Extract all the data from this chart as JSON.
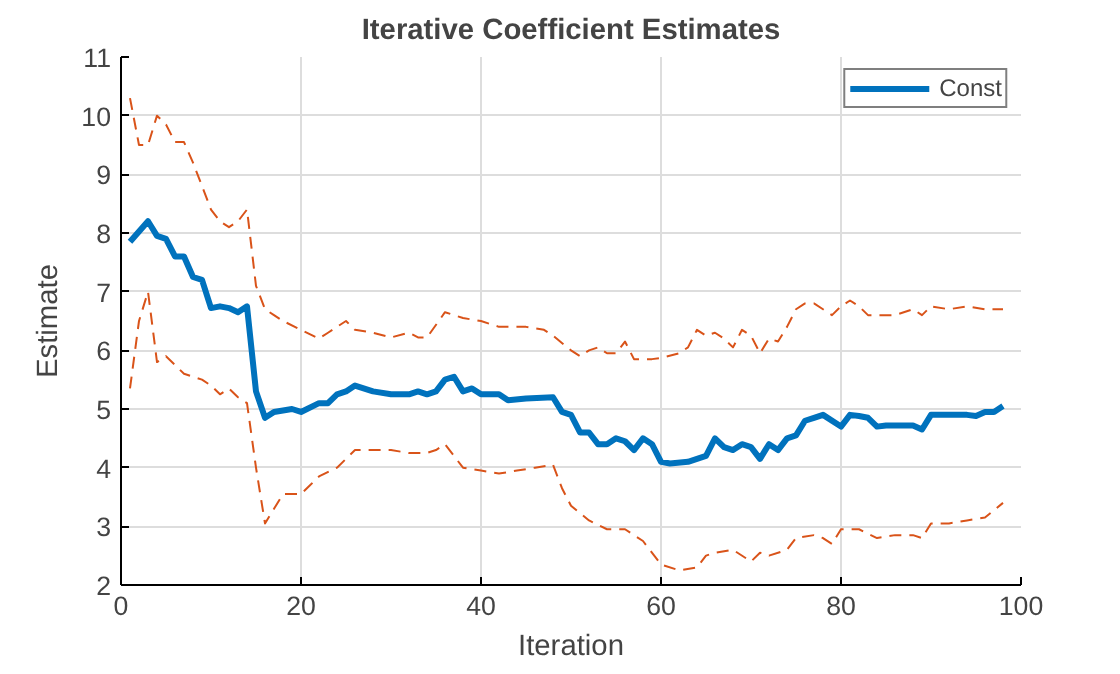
{
  "chart_data": {
    "type": "line",
    "title": "Iterative Coefficient Estimates",
    "xlabel": "Iteration",
    "ylabel": "Estimate",
    "xlim": [
      0,
      100
    ],
    "xticks": [
      0,
      20,
      40,
      60,
      80,
      100
    ],
    "ylim": [
      2,
      11
    ],
    "yticks": [
      2,
      3,
      4,
      5,
      6,
      7,
      8,
      9,
      10,
      11
    ],
    "grid": true,
    "legend": "top right",
    "series": [
      {
        "name": "Const",
        "color": "#0072bd",
        "line_style": "solid",
        "x": [
          1,
          3,
          4,
          5,
          6,
          7,
          8,
          9,
          10,
          11,
          12,
          13,
          14,
          15,
          16,
          17,
          19,
          20,
          22,
          23,
          24,
          25,
          26,
          28,
          30,
          32,
          33,
          34,
          35,
          36,
          37,
          38,
          39,
          40,
          42,
          43,
          45,
          48,
          49,
          50,
          51,
          52,
          53,
          54,
          55,
          56,
          57,
          58,
          59,
          60,
          61,
          63,
          64,
          65,
          66,
          67,
          68,
          69,
          70,
          71,
          72,
          73,
          74,
          75,
          76,
          77,
          78,
          80,
          81,
          82,
          83,
          84,
          85,
          88,
          89,
          90,
          94,
          95,
          96,
          97,
          98
        ],
        "values": [
          7.85,
          8.2,
          7.95,
          7.9,
          7.6,
          7.6,
          7.25,
          7.2,
          6.72,
          6.75,
          6.72,
          6.65,
          6.75,
          5.3,
          4.85,
          4.95,
          5.0,
          4.95,
          5.1,
          5.1,
          5.25,
          5.3,
          5.4,
          5.3,
          5.25,
          5.25,
          5.3,
          5.25,
          5.3,
          5.5,
          5.55,
          5.3,
          5.35,
          5.25,
          5.25,
          5.15,
          5.18,
          5.2,
          4.95,
          4.9,
          4.6,
          4.6,
          4.4,
          4.4,
          4.5,
          4.45,
          4.3,
          4.5,
          4.4,
          4.1,
          4.07,
          4.1,
          4.15,
          4.2,
          4.5,
          4.35,
          4.3,
          4.4,
          4.35,
          4.15,
          4.4,
          4.3,
          4.5,
          4.55,
          4.8,
          4.85,
          4.9,
          4.7,
          4.9,
          4.88,
          4.85,
          4.7,
          4.72,
          4.72,
          4.65,
          4.9,
          4.9,
          4.88,
          4.95,
          4.95,
          5.05
        ]
      },
      {
        "color": "#d95319",
        "line_style": "dashed",
        "x": [
          1,
          2,
          3,
          4,
          5,
          6,
          7,
          8,
          9,
          10,
          11,
          12,
          13,
          14,
          15,
          16,
          17,
          18,
          20,
          22,
          23,
          24,
          25,
          26,
          28,
          30,
          32,
          33,
          34,
          36,
          37,
          38,
          40,
          42,
          45,
          47,
          48,
          50,
          51,
          52,
          53,
          54,
          55,
          56,
          57,
          58,
          59,
          60,
          62,
          63,
          64,
          65,
          66,
          67,
          68,
          69,
          70,
          71,
          72,
          73,
          74,
          75,
          76,
          77,
          78,
          79,
          80,
          81,
          82,
          83,
          85,
          86,
          88,
          89,
          90,
          92,
          94,
          96,
          98
        ],
        "values": [
          10.3,
          9.5,
          9.5,
          10.0,
          9.85,
          9.55,
          9.55,
          9.2,
          8.8,
          8.4,
          8.2,
          8.1,
          8.2,
          8.4,
          7.1,
          6.7,
          6.6,
          6.5,
          6.35,
          6.2,
          6.3,
          6.4,
          6.5,
          6.35,
          6.3,
          6.22,
          6.3,
          6.22,
          6.22,
          6.65,
          6.6,
          6.55,
          6.5,
          6.4,
          6.4,
          6.35,
          6.25,
          6.0,
          5.9,
          6.0,
          6.05,
          5.95,
          5.95,
          6.15,
          5.85,
          5.85,
          5.85,
          5.87,
          5.95,
          6.05,
          6.35,
          6.25,
          6.3,
          6.2,
          6.05,
          6.35,
          6.25,
          5.95,
          6.2,
          6.15,
          6.4,
          6.7,
          6.8,
          6.8,
          6.7,
          6.6,
          6.75,
          6.85,
          6.75,
          6.6,
          6.6,
          6.6,
          6.7,
          6.6,
          6.75,
          6.7,
          6.75,
          6.7,
          6.7
        ]
      },
      {
        "color": "#d95319",
        "line_style": "dashed",
        "x": [
          1,
          2,
          3,
          4,
          5,
          6,
          7,
          8,
          9,
          10,
          11,
          12,
          13,
          14,
          15,
          16,
          17,
          18,
          20,
          21,
          22,
          24,
          26,
          28,
          30,
          32,
          33,
          34,
          35,
          36,
          38,
          40,
          42,
          44,
          46,
          48,
          49,
          50,
          52,
          54,
          56,
          58,
          60,
          62,
          64,
          65,
          66,
          68,
          70,
          71,
          72,
          74,
          75,
          77,
          78,
          79,
          80,
          82,
          84,
          86,
          88,
          89,
          90,
          92,
          94,
          96,
          98
        ],
        "values": [
          5.35,
          6.5,
          7.0,
          5.8,
          5.9,
          5.75,
          5.6,
          5.55,
          5.5,
          5.4,
          5.25,
          5.35,
          5.2,
          5.1,
          4.0,
          3.05,
          3.3,
          3.55,
          3.55,
          3.7,
          3.85,
          4.0,
          4.3,
          4.3,
          4.3,
          4.25,
          4.25,
          4.25,
          4.3,
          4.4,
          4.0,
          3.95,
          3.9,
          3.95,
          4.0,
          4.05,
          3.65,
          3.35,
          3.1,
          2.95,
          2.95,
          2.75,
          2.35,
          2.25,
          2.3,
          2.5,
          2.55,
          2.6,
          2.4,
          2.55,
          2.5,
          2.6,
          2.8,
          2.85,
          2.8,
          2.7,
          2.95,
          2.95,
          2.8,
          2.85,
          2.85,
          2.8,
          3.05,
          3.05,
          3.1,
          3.15,
          3.4
        ]
      }
    ]
  }
}
